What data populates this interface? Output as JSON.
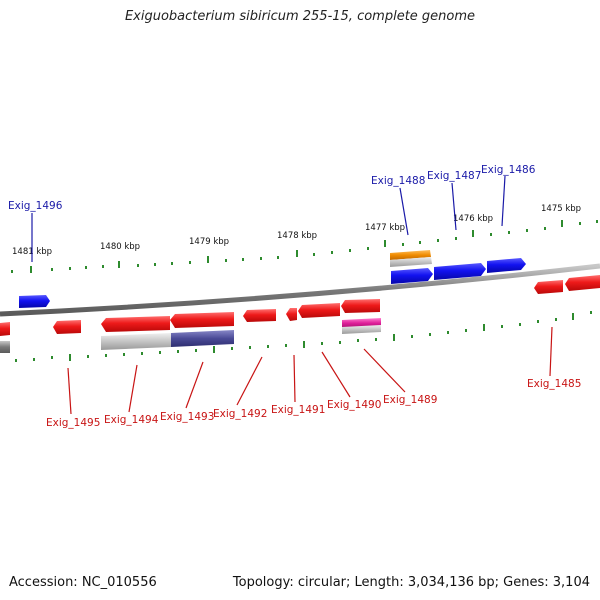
{
  "title": "Exiguobacterium sibiricum 255-15, complete genome",
  "accession": "Accession: NC_010556",
  "topology": "Topology: circular; Length: 3,034,136 bp; Genes: 3,104",
  "colors": {
    "forward_gene": "#1010e8",
    "reverse_gene": "#e81818",
    "forward_label": "#1a1aa8",
    "reverse_label": "#c81414",
    "tick": "#2e8b2e",
    "backbone": "#808080",
    "orange_feature": "#f08c00",
    "magenta_feature": "#e0209a",
    "purple_feature": "#4a4a96"
  },
  "kbp_labels": [
    "1481 kbp",
    "1480 kbp",
    "1479 kbp",
    "1478 kbp",
    "1477 kbp",
    "1476 kbp",
    "1475 kbp"
  ],
  "forward_genes": [
    "Exig_1496",
    "Exig_1488",
    "Exig_1487",
    "Exig_1486"
  ],
  "reverse_genes": [
    "Exig_1495",
    "Exig_1494",
    "Exig_1493",
    "Exig_1492",
    "Exig_1491",
    "Exig_1490",
    "Exig_1489",
    "Exig_1485"
  ]
}
